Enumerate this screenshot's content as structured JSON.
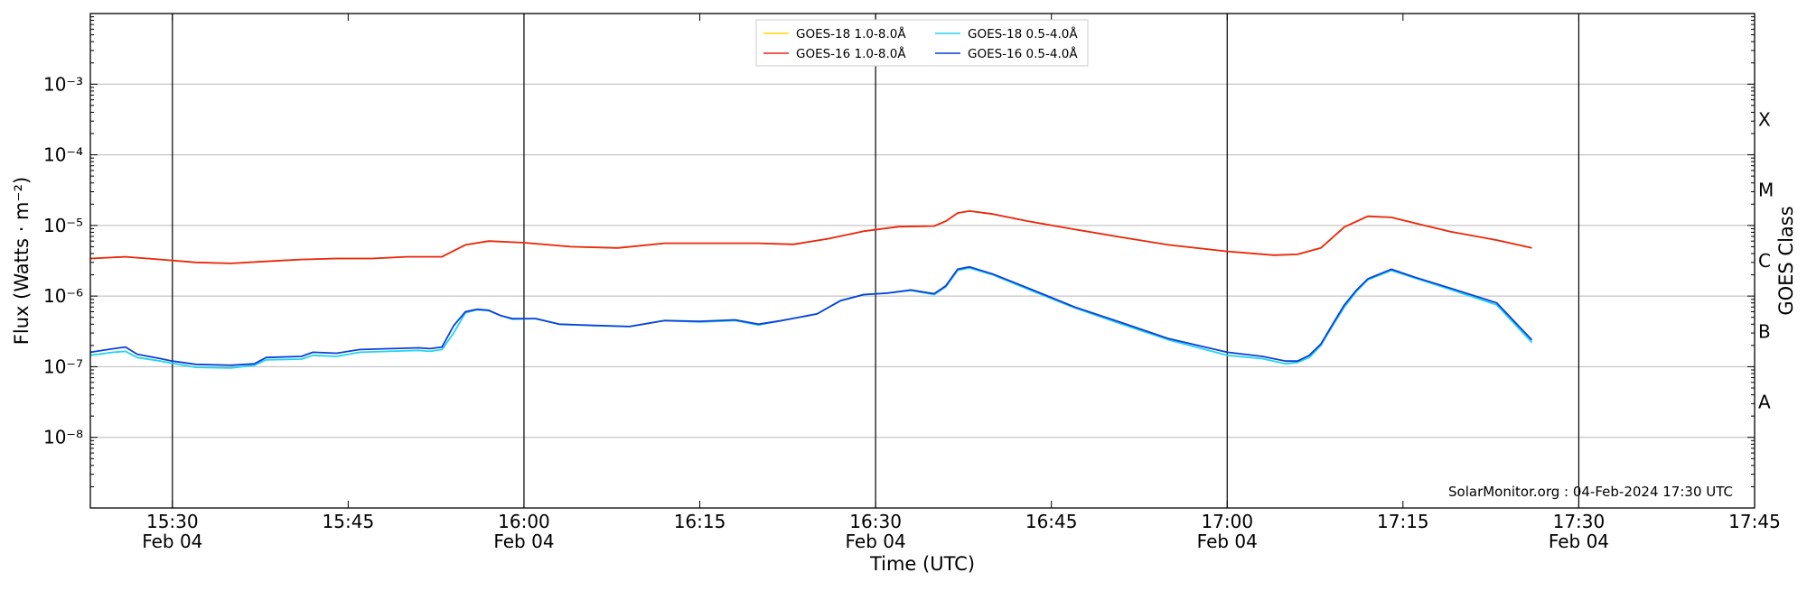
{
  "chart_data": {
    "type": "line",
    "xlabel": "Time (UTC)",
    "ylabel": "Flux (Watts · m⁻²)",
    "right_label": "GOES Class",
    "credit": "SolarMonitor.org : 04-Feb-2024 17:30 UTC",
    "y_scale": "log",
    "ylim": [
      1e-09,
      0.01
    ],
    "xlim": [
      "15:23",
      "17:45"
    ],
    "grid": "horizontal at decades; vertical lines at 30-minute marks",
    "legend_position": "top-center",
    "y_ticks": [
      {
        "value": 1e-08,
        "label": "10⁻⁸"
      },
      {
        "value": 1e-07,
        "label": "10⁻⁷"
      },
      {
        "value": 1e-06,
        "label": "10⁻⁶"
      },
      {
        "value": 1e-05,
        "label": "10⁻⁵"
      },
      {
        "value": 0.0001,
        "label": "10⁻⁴"
      },
      {
        "value": 0.001,
        "label": "10⁻³"
      }
    ],
    "x_ticks": [
      {
        "time": "15:30",
        "label": "15:30",
        "date": "Feb 04",
        "vline": true
      },
      {
        "time": "15:45",
        "label": "15:45",
        "date": "",
        "vline": false
      },
      {
        "time": "16:00",
        "label": "16:00",
        "date": "Feb 04",
        "vline": true
      },
      {
        "time": "16:15",
        "label": "16:15",
        "date": "",
        "vline": false
      },
      {
        "time": "16:30",
        "label": "16:30",
        "date": "Feb 04",
        "vline": true
      },
      {
        "time": "16:45",
        "label": "16:45",
        "date": "",
        "vline": false
      },
      {
        "time": "17:00",
        "label": "17:00",
        "date": "Feb 04",
        "vline": true
      },
      {
        "time": "17:15",
        "label": "17:15",
        "date": "",
        "vline": false
      },
      {
        "time": "17:30",
        "label": "17:30",
        "date": "Feb 04",
        "vline": true
      },
      {
        "time": "17:45",
        "label": "17:45",
        "date": "",
        "vline": false
      }
    ],
    "goes_classes": [
      {
        "label": "A",
        "value": 3.16e-08
      },
      {
        "label": "B",
        "value": 3.16e-07
      },
      {
        "label": "C",
        "value": 3.16e-06
      },
      {
        "label": "M",
        "value": 3.16e-05
      },
      {
        "label": "X",
        "value": 0.000316
      }
    ],
    "series": [
      {
        "name": "GOES-18 1.0-8.0Å",
        "color": "#ffd700",
        "x": [
          "15:23",
          "15:26",
          "15:29",
          "15:32",
          "15:35",
          "15:38",
          "15:41",
          "15:44",
          "15:47",
          "15:50",
          "15:53",
          "15:55",
          "15:57",
          "16:00",
          "16:04",
          "16:08",
          "16:12",
          "16:16",
          "16:20",
          "16:23",
          "16:26",
          "16:29",
          "16:32",
          "16:35",
          "16:36",
          "16:37",
          "16:38",
          "16:40",
          "16:43",
          "16:47",
          "16:51",
          "16:55",
          "17:00",
          "17:04",
          "17:06",
          "17:08",
          "17:10",
          "17:12",
          "17:14",
          "17:16",
          "17:19",
          "17:23",
          "17:26"
        ],
        "y": [
          3.4e-06,
          3.6e-06,
          3.3e-06,
          3e-06,
          2.9e-06,
          3.1e-06,
          3.3e-06,
          3.4e-06,
          3.4e-06,
          3.6e-06,
          3.6e-06,
          5.3e-06,
          6e-06,
          5.7e-06,
          5e-06,
          4.8e-06,
          5.6e-06,
          5.6e-06,
          5.6e-06,
          5.4e-06,
          6.5e-06,
          8.3e-06,
          9.6e-06,
          9.8e-06,
          1.15e-05,
          1.5e-05,
          1.6e-05,
          1.45e-05,
          1.15e-05,
          8.8e-06,
          6.8e-06,
          5.3e-06,
          4.3e-06,
          3.8e-06,
          3.9e-06,
          4.8e-06,
          9.5e-06,
          1.35e-05,
          1.3e-05,
          1.08e-05,
          8.2e-06,
          6.2e-06,
          4.8e-06
        ]
      },
      {
        "name": "GOES-16 1.0-8.0Å",
        "color": "#e8271a",
        "x": [
          "15:23",
          "15:26",
          "15:29",
          "15:32",
          "15:35",
          "15:38",
          "15:41",
          "15:44",
          "15:47",
          "15:50",
          "15:53",
          "15:55",
          "15:57",
          "16:00",
          "16:04",
          "16:08",
          "16:12",
          "16:16",
          "16:20",
          "16:23",
          "16:26",
          "16:29",
          "16:32",
          "16:35",
          "16:36",
          "16:37",
          "16:38",
          "16:40",
          "16:43",
          "16:47",
          "16:51",
          "16:55",
          "17:00",
          "17:04",
          "17:06",
          "17:08",
          "17:10",
          "17:12",
          "17:14",
          "17:16",
          "17:19",
          "17:23",
          "17:26"
        ],
        "y": [
          3.4e-06,
          3.6e-06,
          3.3e-06,
          3e-06,
          2.9e-06,
          3.1e-06,
          3.3e-06,
          3.4e-06,
          3.4e-06,
          3.6e-06,
          3.6e-06,
          5.3e-06,
          6e-06,
          5.7e-06,
          5e-06,
          4.8e-06,
          5.6e-06,
          5.6e-06,
          5.6e-06,
          5.4e-06,
          6.5e-06,
          8.3e-06,
          9.6e-06,
          9.8e-06,
          1.15e-05,
          1.5e-05,
          1.6e-05,
          1.45e-05,
          1.15e-05,
          8.8e-06,
          6.8e-06,
          5.3e-06,
          4.3e-06,
          3.8e-06,
          3.9e-06,
          4.8e-06,
          9.5e-06,
          1.35e-05,
          1.3e-05,
          1.08e-05,
          8.2e-06,
          6.2e-06,
          4.8e-06
        ]
      },
      {
        "name": "GOES-18 0.5-4.0Å",
        "color": "#22d4ee",
        "x": [
          "15:23",
          "15:25",
          "15:26",
          "15:27",
          "15:29",
          "15:30",
          "15:32",
          "15:35",
          "15:37",
          "15:38",
          "15:41",
          "15:42",
          "15:44",
          "15:46",
          "15:51",
          "15:52",
          "15:53",
          "15:54",
          "15:55",
          "15:56",
          "15:57",
          "15:58",
          "15:59",
          "16:01",
          "16:03",
          "16:06",
          "16:09",
          "16:12",
          "16:15",
          "16:18",
          "16:20",
          "16:22",
          "16:25",
          "16:27",
          "16:29",
          "16:31",
          "16:33",
          "16:35",
          "16:36",
          "16:37",
          "16:38",
          "16:40",
          "16:43",
          "16:47",
          "16:51",
          "16:55",
          "17:00",
          "17:03",
          "17:05",
          "17:06",
          "17:07",
          "17:08",
          "17:09",
          "17:10",
          "17:11",
          "17:12",
          "17:14",
          "17:16",
          "17:19",
          "17:23",
          "17:26"
        ],
        "y": [
          1.45e-07,
          1.6e-07,
          1.65e-07,
          1.35e-07,
          1.2e-07,
          1.12e-07,
          9.8e-08,
          9.6e-08,
          1.05e-07,
          1.25e-07,
          1.28e-07,
          1.45e-07,
          1.4e-07,
          1.6e-07,
          1.7e-07,
          1.65e-07,
          1.75e-07,
          3e-07,
          5.8e-07,
          6.4e-07,
          6.2e-07,
          5.3e-07,
          4.7e-07,
          4.8e-07,
          4e-07,
          3.8e-07,
          3.7e-07,
          4.5e-07,
          4.3e-07,
          4.5e-07,
          3.9e-07,
          4.5e-07,
          5.6e-07,
          8.6e-07,
          1.05e-06,
          1.1e-06,
          1.2e-06,
          1.05e-06,
          1.35e-06,
          2.3e-06,
          2.5e-06,
          2e-06,
          1.25e-06,
          6.8e-07,
          4e-07,
          2.4e-07,
          1.45e-07,
          1.3e-07,
          1.1e-07,
          1.15e-07,
          1.35e-07,
          2e-07,
          3.8e-07,
          7e-07,
          1.15e-06,
          1.7e-06,
          2.3e-06,
          1.8e-06,
          1.25e-06,
          7.5e-07,
          2.2e-07
        ]
      },
      {
        "name": "GOES-16 0.5-4.0Å",
        "color": "#0b3fd8",
        "x": [
          "15:23",
          "15:25",
          "15:26",
          "15:27",
          "15:29",
          "15:30",
          "15:32",
          "15:35",
          "15:37",
          "15:38",
          "15:41",
          "15:42",
          "15:44",
          "15:46",
          "15:51",
          "15:52",
          "15:53",
          "15:54",
          "15:55",
          "15:56",
          "15:57",
          "15:58",
          "15:59",
          "16:01",
          "16:03",
          "16:06",
          "16:09",
          "16:12",
          "16:15",
          "16:18",
          "16:20",
          "16:22",
          "16:25",
          "16:27",
          "16:29",
          "16:31",
          "16:33",
          "16:35",
          "16:36",
          "16:37",
          "16:38",
          "16:40",
          "16:43",
          "16:47",
          "16:51",
          "16:55",
          "17:00",
          "17:03",
          "17:05",
          "17:06",
          "17:07",
          "17:08",
          "17:09",
          "17:10",
          "17:11",
          "17:12",
          "17:14",
          "17:16",
          "17:19",
          "17:23",
          "17:26"
        ],
        "y": [
          1.6e-07,
          1.8e-07,
          1.9e-07,
          1.5e-07,
          1.3e-07,
          1.2e-07,
          1.08e-07,
          1.05e-07,
          1.1e-07,
          1.35e-07,
          1.4e-07,
          1.6e-07,
          1.55e-07,
          1.75e-07,
          1.85e-07,
          1.8e-07,
          1.9e-07,
          3.8e-07,
          6e-07,
          6.5e-07,
          6.3e-07,
          5.3e-07,
          4.8e-07,
          4.8e-07,
          4e-07,
          3.85e-07,
          3.7e-07,
          4.5e-07,
          4.4e-07,
          4.6e-07,
          4e-07,
          4.5e-07,
          5.6e-07,
          8.6e-07,
          1.05e-06,
          1.1e-06,
          1.22e-06,
          1.08e-06,
          1.4e-06,
          2.4e-06,
          2.6e-06,
          2.05e-06,
          1.3e-06,
          7e-07,
          4.2e-07,
          2.5e-07,
          1.6e-07,
          1.4e-07,
          1.2e-07,
          1.2e-07,
          1.45e-07,
          2.1e-07,
          4e-07,
          7.5e-07,
          1.2e-06,
          1.75e-06,
          2.4e-06,
          1.85e-06,
          1.3e-06,
          8e-07,
          2.4e-07
        ]
      }
    ]
  }
}
